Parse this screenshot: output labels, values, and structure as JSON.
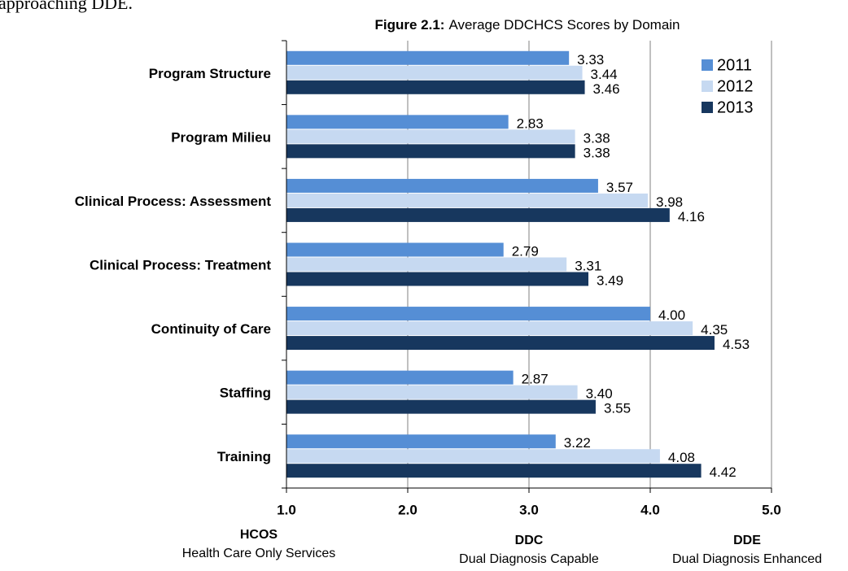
{
  "document_text": "approaching DDE.",
  "chart_data": {
    "type": "barh",
    "title_label": "Figure 2.1:",
    "title": "Average DDCHCS Scores by Domain",
    "categories": [
      "Program Structure",
      "Program Milieu",
      "Clinical Process: Assessment",
      "Clinical Process: Treatment",
      "Continuity of Care",
      "Staffing",
      "Training"
    ],
    "series": [
      {
        "name": "2011",
        "color": "#558ed5",
        "values": [
          3.33,
          2.83,
          3.57,
          2.79,
          4.0,
          2.87,
          3.22
        ],
        "value_labels": [
          "3.33",
          "2.83",
          "3.57",
          "2.79",
          "4.00",
          "2.87",
          "3.22"
        ]
      },
      {
        "name": "2012",
        "color": "#c6d9f1",
        "values": [
          3.44,
          3.38,
          3.98,
          3.31,
          4.35,
          3.4,
          4.08
        ],
        "value_labels": [
          "3.44",
          "3.38",
          "3.98",
          "3.31",
          "4.35",
          "3.40",
          "4.08"
        ]
      },
      {
        "name": "2013",
        "color": "#17375e",
        "values": [
          3.46,
          3.38,
          4.16,
          3.49,
          4.53,
          3.55,
          4.42
        ],
        "value_labels": [
          "3.46",
          "3.38",
          "4.16",
          "3.49",
          "4.53",
          "3.55",
          "4.42"
        ]
      }
    ],
    "xlim": [
      1,
      5
    ],
    "xticks": [
      {
        "value": 1,
        "label": "1.0"
      },
      {
        "value": 2,
        "label": "2.0"
      },
      {
        "value": 3,
        "label": "3.0"
      },
      {
        "value": 4,
        "label": "4.0"
      },
      {
        "value": 5,
        "label": "5.0"
      }
    ],
    "grid": true,
    "legend": "upper right",
    "annotations": [
      {
        "title": "HCOS",
        "text": "Health Care Only Services"
      },
      {
        "title": "DDC",
        "text": "Dual Diagnosis Capable"
      },
      {
        "title": "DDE",
        "text": "Dual Diagnosis Enhanced"
      }
    ]
  }
}
